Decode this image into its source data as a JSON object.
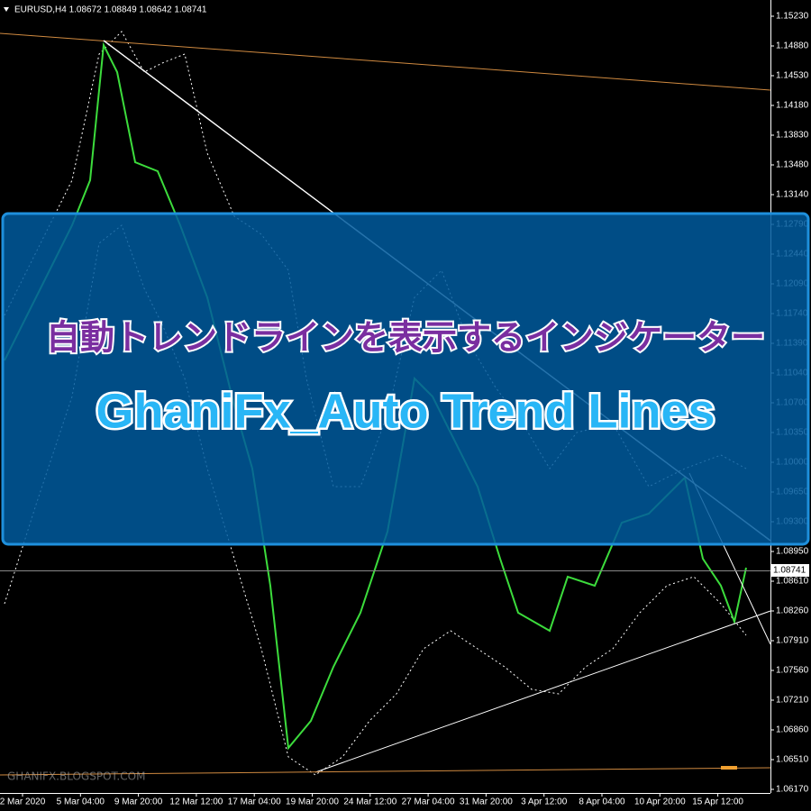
{
  "header": {
    "symbol": "EURUSD,H4 1.08672 1.08849 1.08642 1.08741"
  },
  "price_axis": {
    "labels": [
      "1.15230",
      "1.14880",
      "1.14530",
      "1.14180",
      "1.13830",
      "1.13480",
      "1.13140",
      "1.12790",
      "1.12440",
      "1.12090",
      "1.11740",
      "1.11390",
      "1.11040",
      "1.10700",
      "1.10350",
      "1.10000",
      "1.09650",
      "1.09300",
      "1.08950",
      "1.08610",
      "1.08260",
      "1.07910",
      "1.07560",
      "1.07210",
      "1.06860",
      "1.06510",
      "1.06170"
    ],
    "current_price": "1.08741"
  },
  "time_axis": {
    "labels": [
      "2 Mar 2020",
      "5 Mar 04:00",
      "9 Mar 20:00",
      "12 Mar 12:00",
      "17 Mar 04:00",
      "19 Mar 20:00",
      "24 Mar 12:00",
      "27 Mar 04:00",
      "31 Mar 20:00",
      "3 Apr 12:00",
      "8 Apr 04:00",
      "10 Apr 20:00",
      "15 Apr 12:00"
    ]
  },
  "banner": {
    "subtitle": "自動トレンドラインを表示するインジケーター",
    "title": "GhaniFx_Auto Trend Lines"
  },
  "watermark": "GHANIFX.BLOGSPOT.COM"
}
